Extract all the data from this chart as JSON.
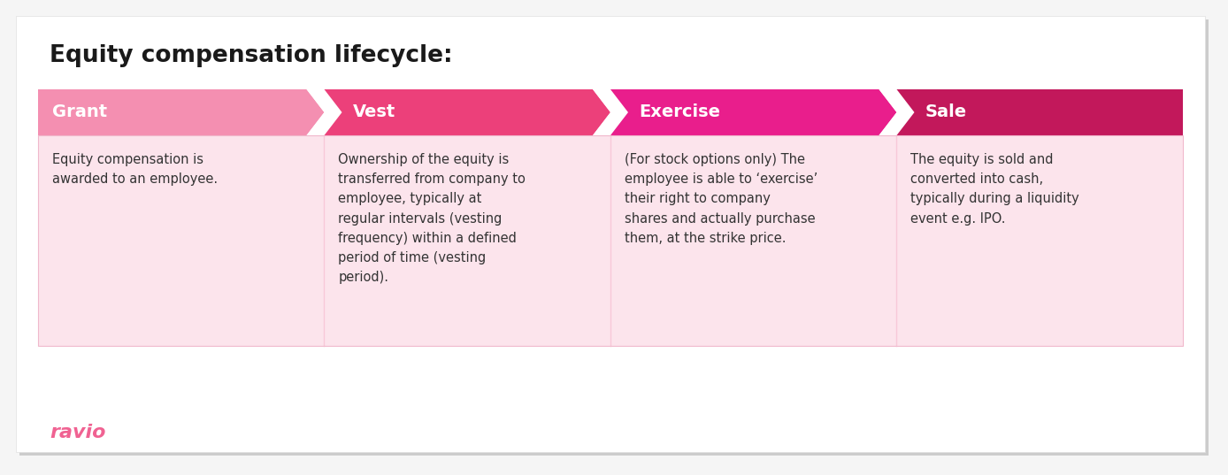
{
  "title": "Equity compensation lifecycle:",
  "background_color": "#f5f5f5",
  "card_bg_color": "#fce4ec",
  "outer_bg": "#ffffff",
  "header_colors": [
    "#f48fb1",
    "#ec407a",
    "#e91e8c",
    "#c2185b"
  ],
  "header_labels": [
    "Grant",
    "Vest",
    "Exercise",
    "Sale"
  ],
  "body_texts": [
    "Equity compensation is\nawarded to an employee.",
    "Ownership of the equity is\ntransferred from company to\nemployee, typically at\nregular intervals (vesting\nfrequency) within a defined\nperiod of time (vesting\nperiod).",
    "(For stock options only) The\nemployee is able to ‘exercise’\ntheir right to company\nshares and actually purchase\nthem, at the strike price.",
    "The equity is sold and\nconverted into cash,\ntypically during a liquidity\nevent e.g. IPO."
  ],
  "watermark_text": "ravio",
  "watermark_color": "#f06292",
  "title_fontsize": 19,
  "header_fontsize": 14,
  "body_fontsize": 10.5,
  "watermark_fontsize": 16,
  "fig_width": 13.88,
  "fig_height": 5.37,
  "dpi": 100
}
